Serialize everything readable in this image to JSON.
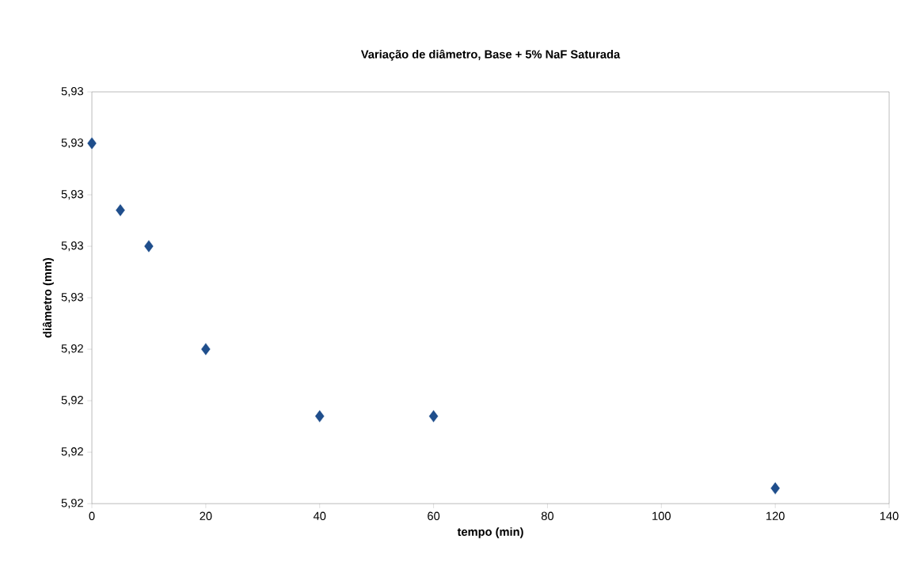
{
  "chart_data": {
    "type": "scatter",
    "title": "Variação de diâmetro, Base + 5% NaF Saturada",
    "xlabel": "tempo (min)",
    "ylabel": "diâmetro (mm)",
    "x": [
      0,
      5,
      10,
      20,
      40,
      60,
      120
    ],
    "series": [
      {
        "color": "#1f4e8c",
        "values": [
          5.928,
          5.9267,
          5.926,
          5.924,
          5.9227,
          5.9227,
          5.9213
        ]
      }
    ],
    "xlim": [
      0,
      140
    ],
    "xticks": [
      0,
      20,
      40,
      60,
      80,
      100,
      120,
      140
    ],
    "ylim": [
      5.921,
      5.929
    ],
    "yticks": [
      {
        "value": 5.921,
        "label": "5,92"
      },
      {
        "value": 5.922,
        "label": "5,92"
      },
      {
        "value": 5.923,
        "label": "5,92"
      },
      {
        "value": 5.924,
        "label": "5,92"
      },
      {
        "value": 5.925,
        "label": "5,93"
      },
      {
        "value": 5.926,
        "label": "5,93"
      },
      {
        "value": 5.927,
        "label": "5,93"
      },
      {
        "value": 5.928,
        "label": "5,93"
      },
      {
        "value": 5.929,
        "label": "5,93"
      }
    ],
    "marker": "diamond",
    "grid": false
  }
}
